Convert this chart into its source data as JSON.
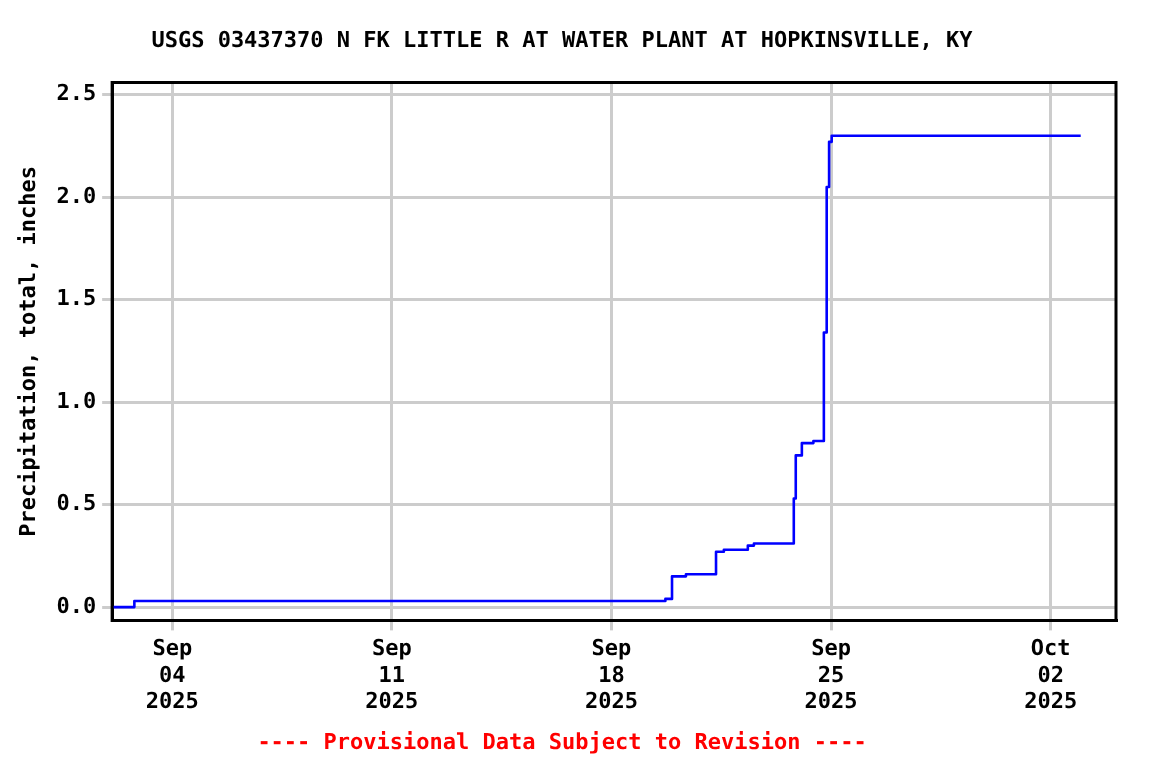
{
  "chart_data": {
    "type": "step",
    "title": "USGS 03437370 N FK LITTLE R AT WATER PLANT AT HOPKINSVILLE, KY",
    "ylabel": "Precipitation, total, inches",
    "annotations": [
      "---- Provisional Data Subject to Revision ----"
    ],
    "x": [
      "2025-09-02T02:00",
      "2025-09-02T19:00",
      "2025-09-19T17:15",
      "2025-09-19T22:20",
      "2025-09-20T09:00",
      "2025-09-21T08:00",
      "2025-09-21T14:00",
      "2025-09-22T08:20",
      "2025-09-22T13:00",
      "2025-09-23T19:30",
      "2025-09-23T21:00",
      "2025-09-24T01:40",
      "2025-09-24T10:30",
      "2025-09-24T18:30",
      "2025-09-24T20:40",
      "2025-09-24T22:30",
      "2025-09-25T00:30",
      "2025-10-02T23:00"
    ],
    "series": [
      {
        "color": "#0000ff",
        "values": [
          0,
          0.03,
          0.04,
          0.15,
          0.16,
          0.27,
          0.28,
          0.3,
          0.31,
          0.53,
          0.74,
          0.8,
          0.81,
          1.34,
          2.05,
          2.27,
          2.3,
          2.3
        ]
      }
    ],
    "xlim": [
      "2025-09-02T02:00",
      "2025-10-04T02:00"
    ],
    "xticks": [
      {
        "value": "2025-09-04",
        "label": "Sep 04 2025"
      },
      {
        "value": "2025-09-11",
        "label": "Sep 11 2025"
      },
      {
        "value": "2025-09-18",
        "label": "Sep 18 2025"
      },
      {
        "value": "2025-09-25",
        "label": "Sep 25 2025"
      },
      {
        "value": "2025-10-02",
        "label": "Oct 02 2025"
      }
    ],
    "ylim": [
      -0.065,
      2.56
    ],
    "yticks": [
      {
        "value": 0,
        "label": "0.0"
      },
      {
        "value": 0.5,
        "label": "0.5"
      },
      {
        "value": 1,
        "label": "1.0"
      },
      {
        "value": 1.5,
        "label": "1.5"
      },
      {
        "value": 2,
        "label": "2.0"
      },
      {
        "value": 2.5,
        "label": "2.5"
      }
    ],
    "grid": true,
    "legend": false,
    "marker": "none",
    "line_style": "solid"
  }
}
